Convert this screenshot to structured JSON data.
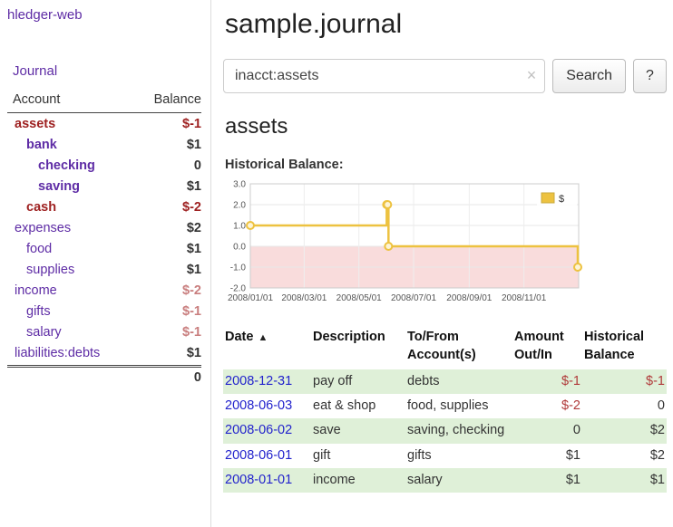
{
  "colors": {
    "link_purple": "#5e2ca5",
    "date_blue": "#2222cc",
    "negative_dark": "#9e2121",
    "negative_light": "#c97e7e",
    "negative_table": "#b03a3a",
    "row_green": "#dff0d8",
    "chart_line": "#EDC240",
    "chart_negative_fill": "#f9dcdc"
  },
  "sidebar": {
    "app_title": "hledger-web",
    "nav": {
      "journal": "Journal"
    },
    "accounts": {
      "header": {
        "account": "Account",
        "balance": "Balance"
      },
      "rows": [
        {
          "name": "assets",
          "balance": "$-1"
        },
        {
          "name": "bank",
          "balance": "$1"
        },
        {
          "name": "checking",
          "balance": "0"
        },
        {
          "name": "saving",
          "balance": "$1"
        },
        {
          "name": "cash",
          "balance": "$-2"
        },
        {
          "name": "expenses",
          "balance": "$2"
        },
        {
          "name": "food",
          "balance": "$1"
        },
        {
          "name": "supplies",
          "balance": "$1"
        },
        {
          "name": "income",
          "balance": "$-2"
        },
        {
          "name": "gifts",
          "balance": "$-1"
        },
        {
          "name": "salary",
          "balance": "$-1"
        },
        {
          "name": "liabilities:debts",
          "balance": "$1"
        }
      ],
      "total": "0"
    }
  },
  "main": {
    "title": "sample.journal",
    "search": {
      "value": "inacct:assets",
      "clear_icon": "×",
      "search_button": "Search",
      "help_button": "?"
    },
    "account_heading": "assets",
    "chart_heading": "Historical Balance:",
    "transactions": {
      "sort_icon": "▲",
      "headers": {
        "date": "Date",
        "description": "Description",
        "account": "To/From Account(s)",
        "amount": "Amount Out/In",
        "balance": "Historical Balance"
      },
      "rows": [
        {
          "date": "2008-12-31",
          "description": "pay off",
          "account": "debts",
          "amount": "$-1",
          "balance": "$-1"
        },
        {
          "date": "2008-06-03",
          "description": "eat & shop",
          "account": "food, supplies",
          "amount": "$-2",
          "balance": "0"
        },
        {
          "date": "2008-06-02",
          "description": "save",
          "account": "saving, checking",
          "amount": "0",
          "balance": "$2"
        },
        {
          "date": "2008-06-01",
          "description": "gift",
          "account": "gifts",
          "amount": "$1",
          "balance": "$2"
        },
        {
          "date": "2008-01-01",
          "description": "income",
          "account": "salary",
          "amount": "$1",
          "balance": "$1"
        }
      ]
    }
  },
  "chart_data": {
    "type": "line",
    "title": "Historical Balance:",
    "step": true,
    "legend": [
      {
        "label": "$",
        "color": "#EDC240"
      }
    ],
    "series": [
      {
        "name": "$",
        "points": [
          [
            "2008-01-01",
            1
          ],
          [
            "2008-06-01",
            2
          ],
          [
            "2008-06-02",
            2
          ],
          [
            "2008-06-03",
            0
          ],
          [
            "2008-12-31",
            -1
          ]
        ]
      }
    ],
    "xlim": [
      "2008-01-01",
      "2009-01-01"
    ],
    "ylim": [
      -2,
      3
    ],
    "x_ticks": [
      {
        "pos": "2008-01-01",
        "label": "2008/01/01"
      },
      {
        "pos": "2008-03-01",
        "label": "2008/03/01"
      },
      {
        "pos": "2008-05-01",
        "label": "2008/05/01"
      },
      {
        "pos": "2008-07-01",
        "label": "2008/07/01"
      },
      {
        "pos": "2008-09-01",
        "label": "2008/09/01"
      },
      {
        "pos": "2008-11-01",
        "label": "2008/11/01"
      }
    ],
    "y_ticks": [
      "3.0",
      "2.0",
      "1.0",
      "0.0",
      "-1.0",
      "-2.0"
    ],
    "grid": true,
    "legend_position": "top-right",
    "negative_region_fill": true
  }
}
